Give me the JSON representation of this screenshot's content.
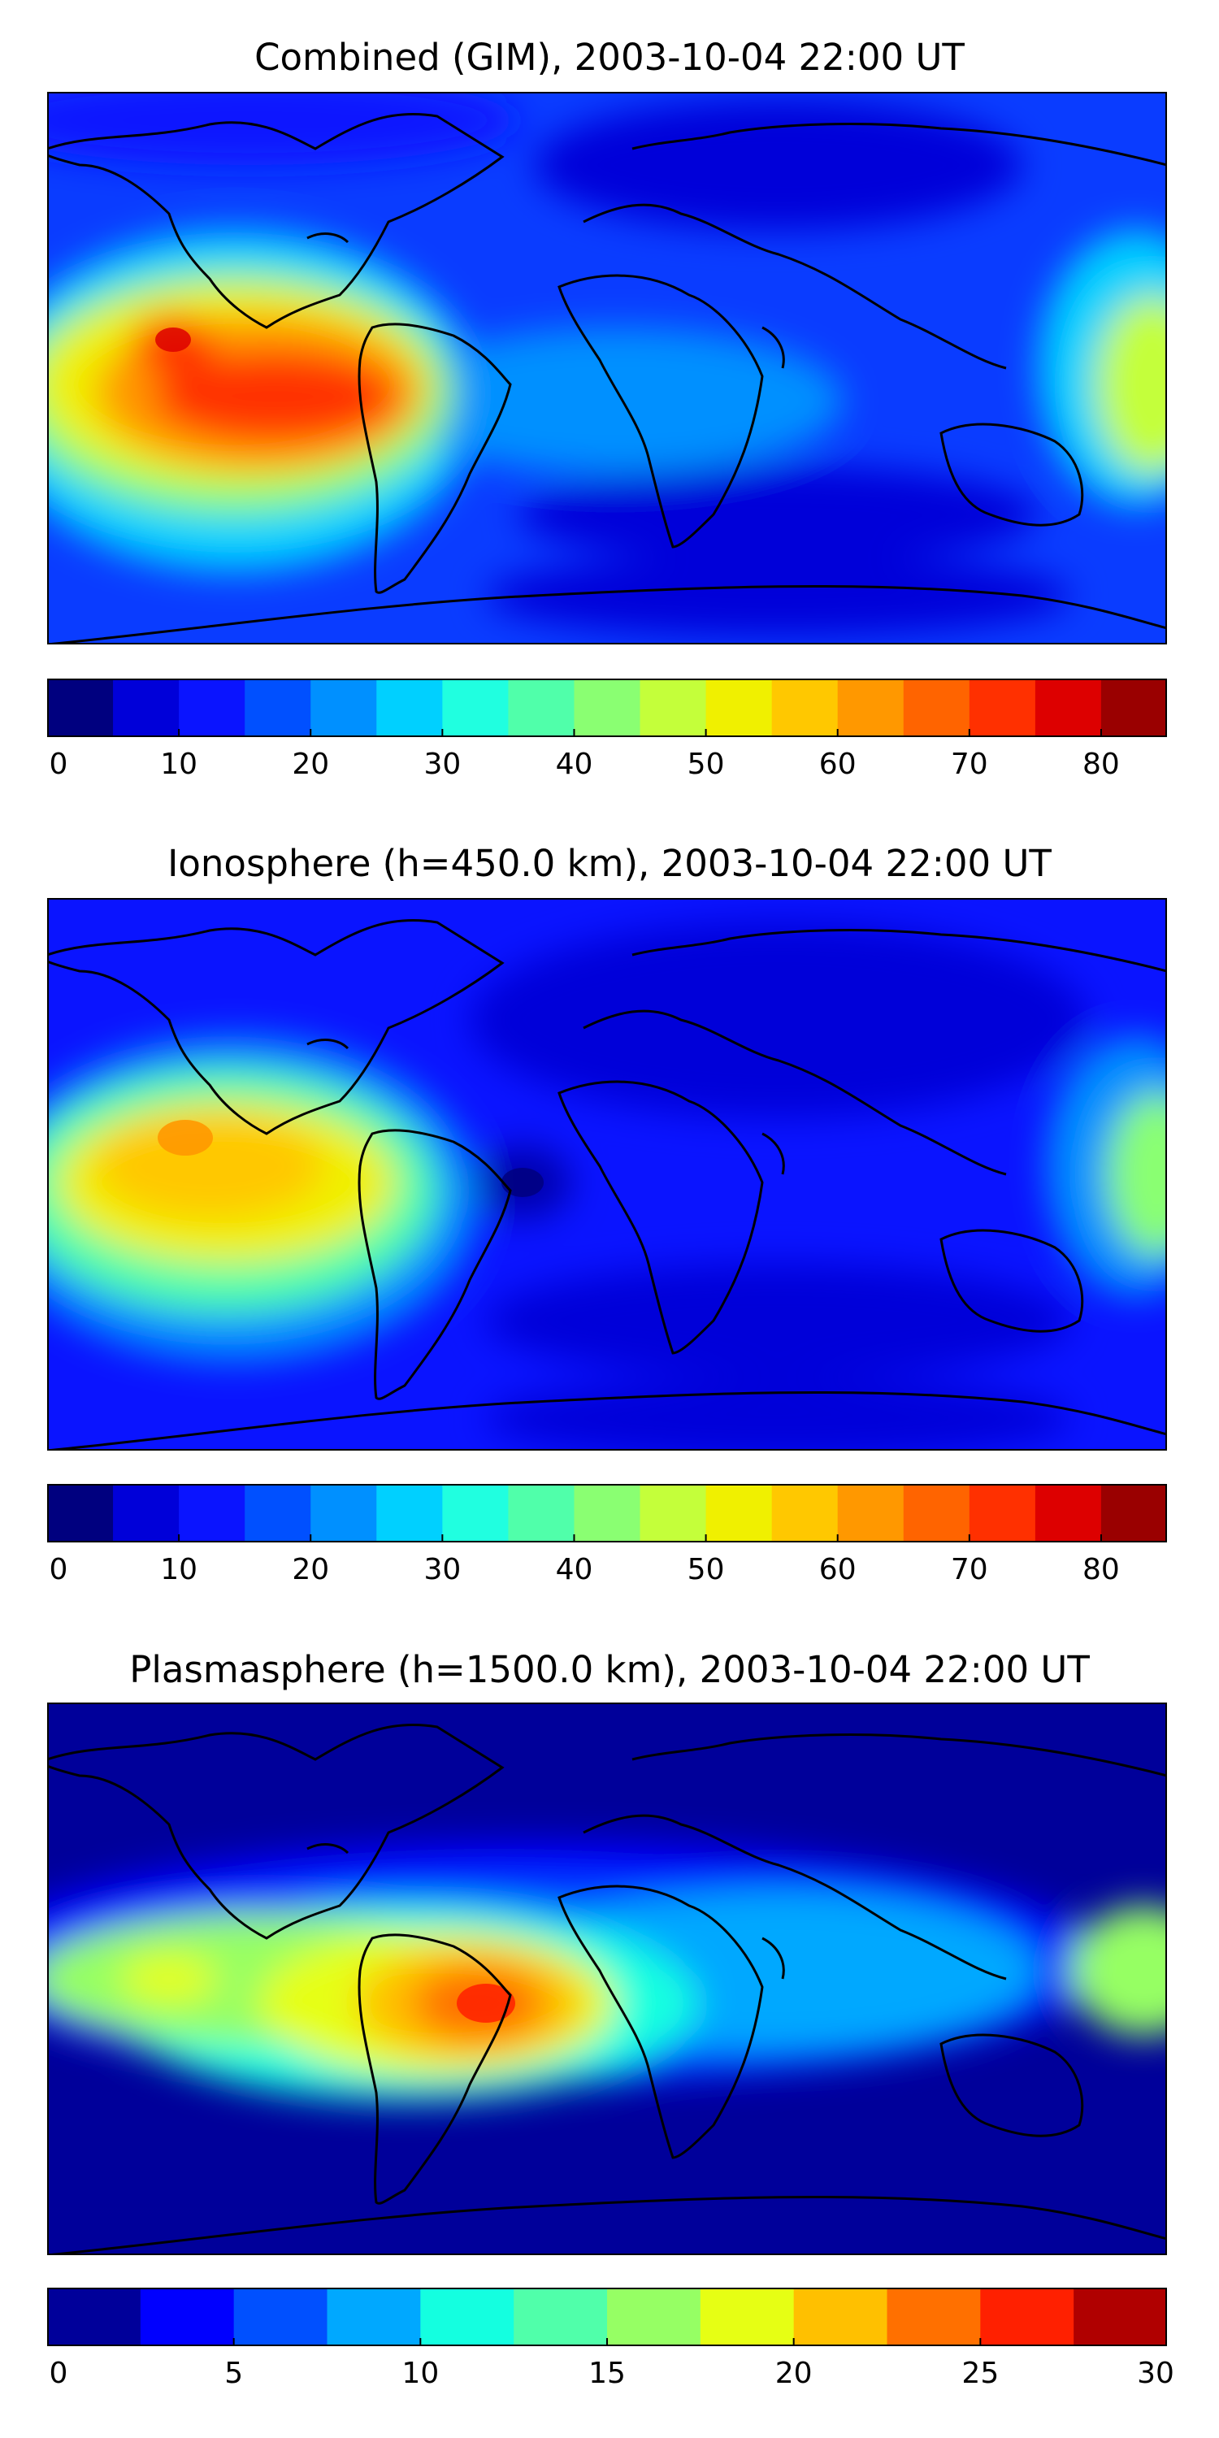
{
  "chart_data": [
    {
      "type": "heatmap",
      "title": "Combined (GIM), 2003-10-04 22:00 UT",
      "projection": "world map (equirectangular) with coastlines",
      "colorbar": {
        "ticks": [
          "0",
          "10",
          "20",
          "30",
          "40",
          "50",
          "60",
          "70",
          "80"
        ],
        "tick_values": [
          0,
          10,
          20,
          30,
          40,
          50,
          60,
          70,
          80
        ],
        "range": [
          0,
          85
        ],
        "step": 5,
        "colors": [
          "#00007f",
          "#0000d9",
          "#0a14ff",
          "#0050ff",
          "#0090ff",
          "#00d0ff",
          "#20ffe0",
          "#50ffaa",
          "#8aff72",
          "#c4ff3a",
          "#f0f000",
          "#ffc800",
          "#ff9800",
          "#ff6400",
          "#ff3000",
          "#dd0000",
          "#9a0000"
        ]
      },
      "features": [
        {
          "description": "peak over eastern Pacific",
          "value": 80
        },
        {
          "description": "peak over South America",
          "value": 70
        },
        {
          "description": "western Pacific / Australia high",
          "value": 50
        }
      ]
    },
    {
      "type": "heatmap",
      "title": "Ionosphere  (h=450.0 km), 2003-10-04 22:00 UT",
      "projection": "world map (equirectangular) with coastlines",
      "colorbar": {
        "ticks": [
          "0",
          "10",
          "20",
          "30",
          "40",
          "50",
          "60",
          "70",
          "80"
        ],
        "tick_values": [
          0,
          10,
          20,
          30,
          40,
          50,
          60,
          70,
          80
        ],
        "range": [
          0,
          85
        ],
        "step": 5,
        "colors": [
          "#00007f",
          "#0000d9",
          "#0a14ff",
          "#0050ff",
          "#0090ff",
          "#00d0ff",
          "#20ffe0",
          "#50ffaa",
          "#8aff72",
          "#c4ff3a",
          "#f0f000",
          "#ffc800",
          "#ff9800",
          "#ff6400",
          "#ff3000",
          "#dd0000",
          "#9a0000"
        ]
      },
      "features": [
        {
          "description": "peak over eastern Pacific",
          "value": 65
        },
        {
          "description": "low over eastern Brazil",
          "value": 5
        },
        {
          "description": "western Pacific high",
          "value": 45
        }
      ]
    },
    {
      "type": "heatmap",
      "title": "Plasmasphere (h=1500.0 km), 2003-10-04 22:00 UT",
      "projection": "world map (equirectangular) with coastlines",
      "colorbar": {
        "ticks": [
          "0",
          "5",
          "10",
          "15",
          "20",
          "25",
          "30"
        ],
        "tick_values": [
          0,
          5,
          10,
          15,
          20,
          25,
          30
        ],
        "range": [
          0,
          30
        ],
        "step": 2.5,
        "colors": [
          "#00009a",
          "#0000ff",
          "#0050ff",
          "#00a8ff",
          "#14ffe0",
          "#50ffaa",
          "#96ff64",
          "#e6ff14",
          "#ffc000",
          "#ff7000",
          "#ff2000",
          "#b00000"
        ]
      },
      "features": [
        {
          "description": "peak over Brazil",
          "value": 27
        },
        {
          "description": "eastern Pacific high",
          "value": 20
        },
        {
          "description": "western Pacific high",
          "value": 17
        }
      ]
    }
  ]
}
